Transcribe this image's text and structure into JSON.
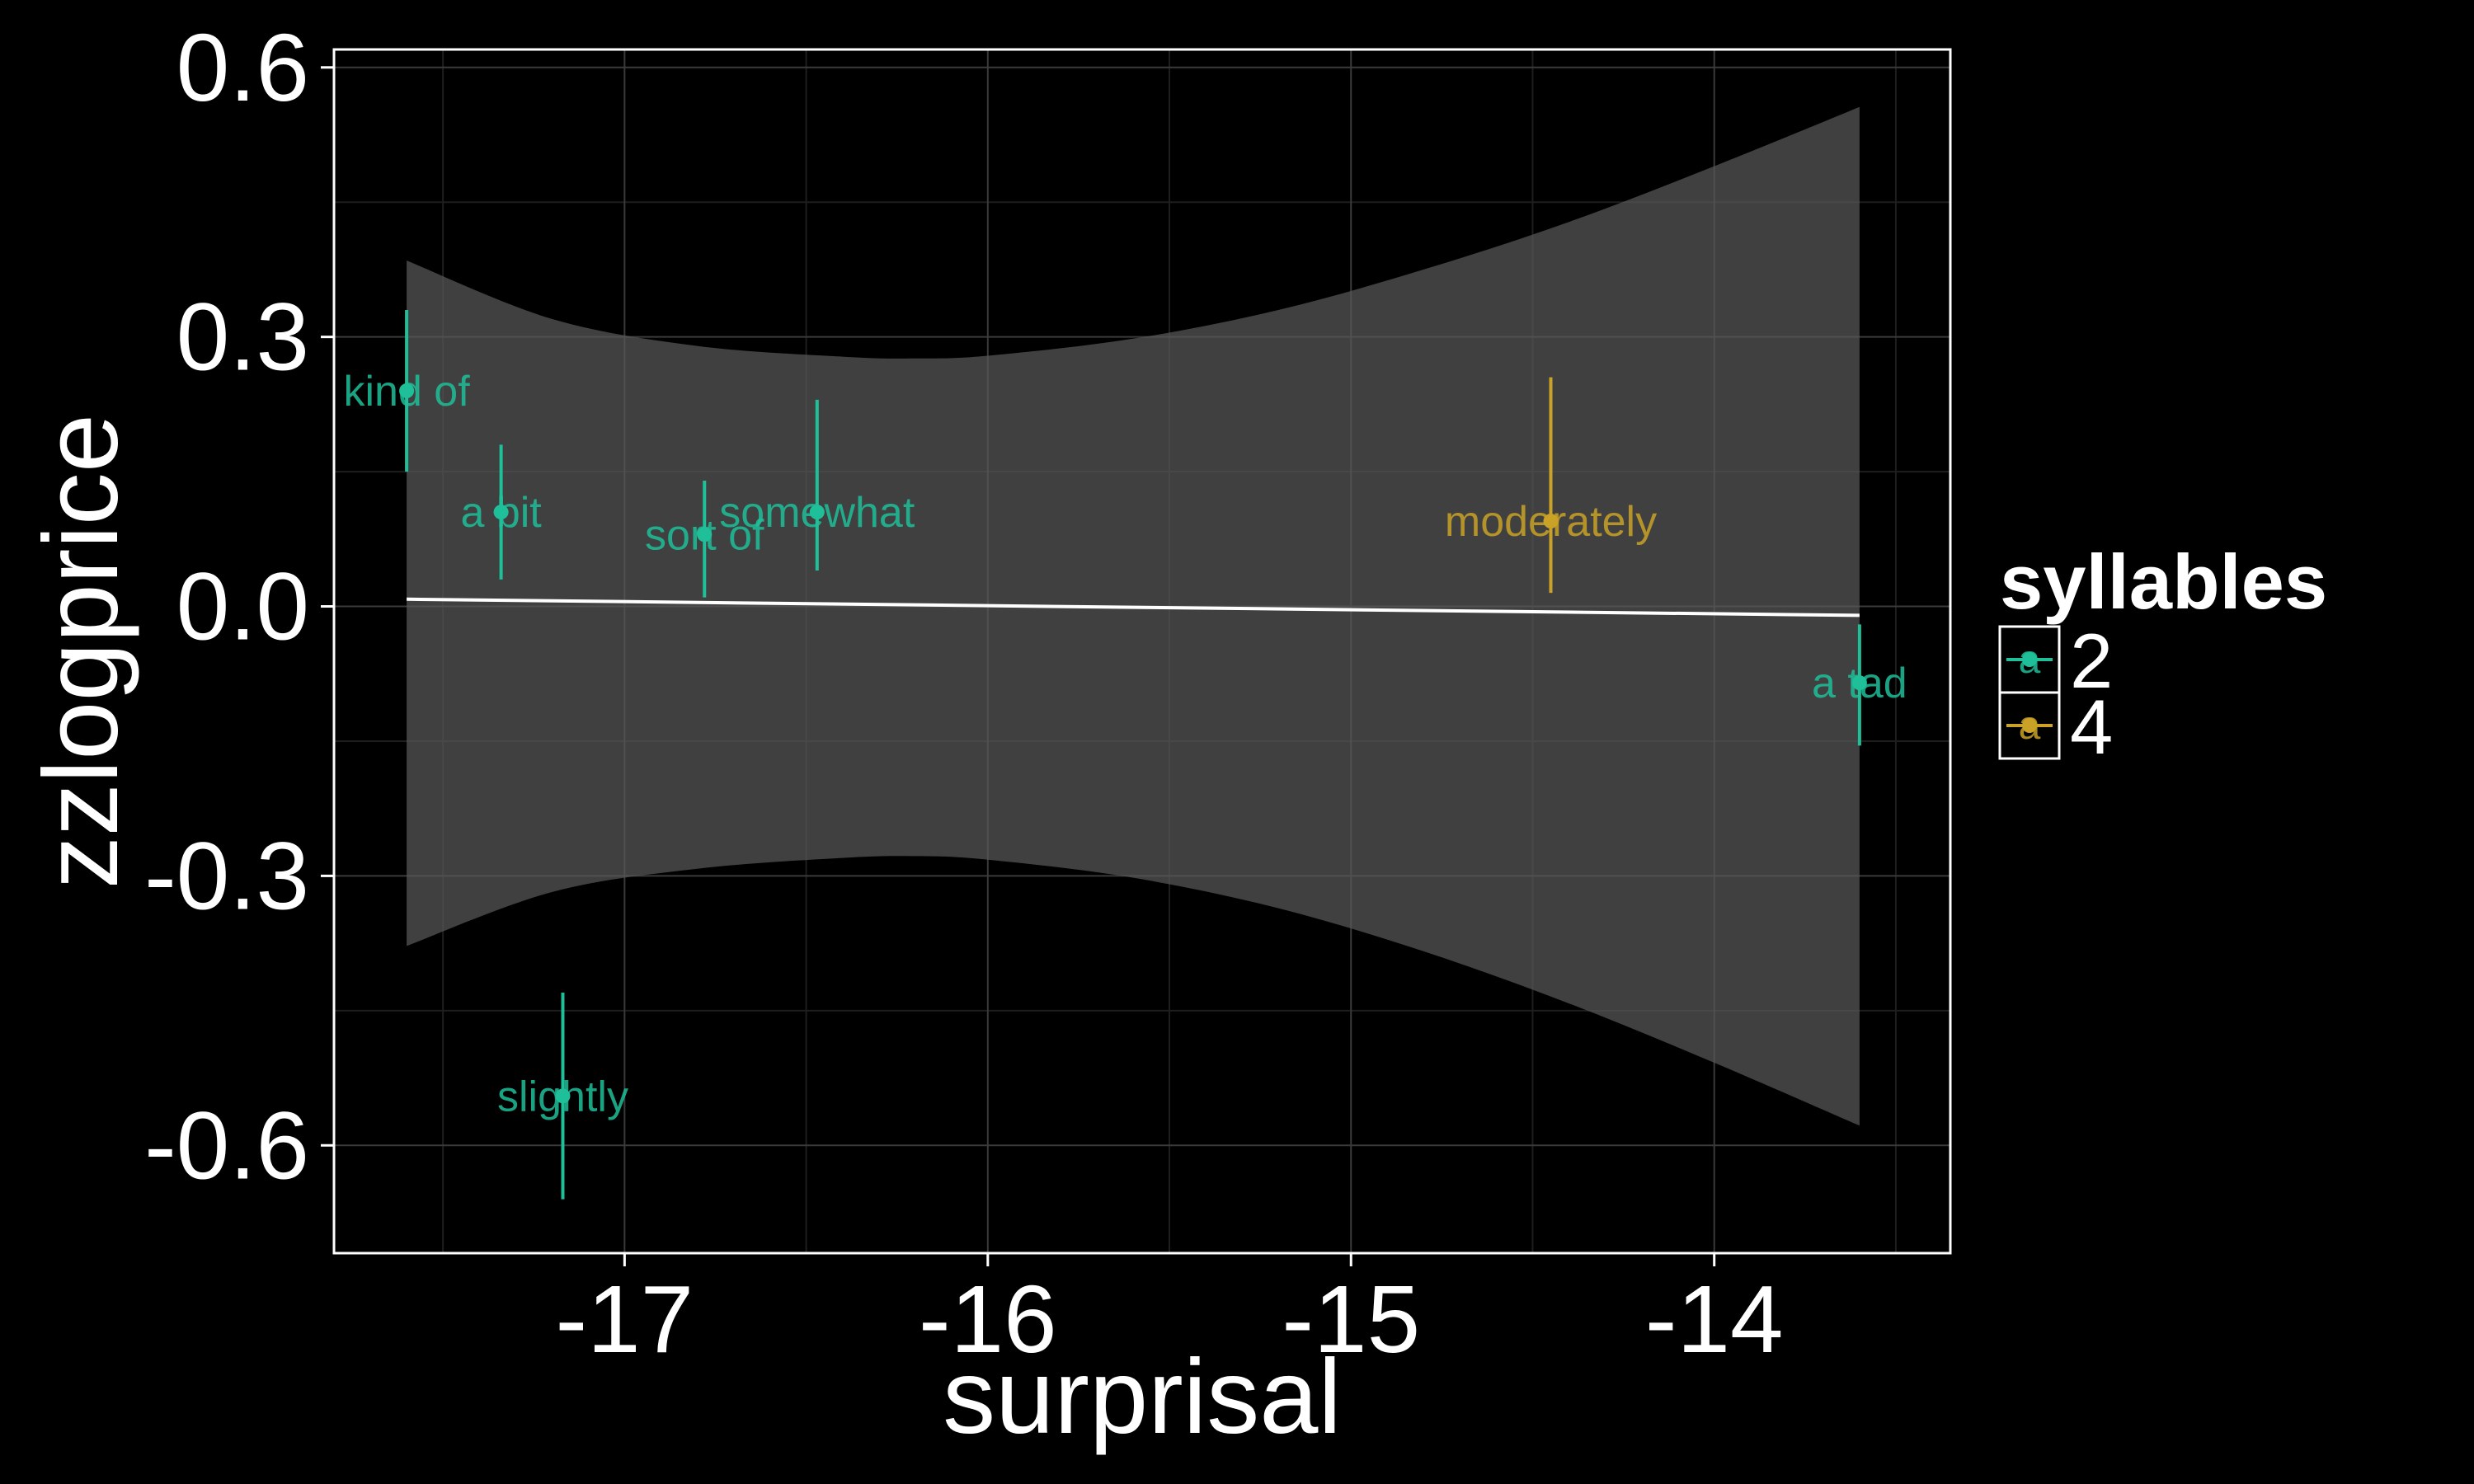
{
  "chart_data": {
    "type": "scatter",
    "title": "",
    "xlabel": "surprisal",
    "ylabel": "zzlogprice",
    "xlim": [
      -17.8,
      -13.35
    ],
    "ylim": [
      -0.72,
      0.62
    ],
    "xticks": [
      -17,
      -16,
      -15,
      -14
    ],
    "xtick_labels": [
      "-17",
      "-16",
      "-15",
      "-14"
    ],
    "yticks": [
      -0.6,
      -0.3,
      0.0,
      0.3,
      0.6
    ],
    "ytick_labels": [
      "-0.6",
      "-0.3",
      "0.0",
      "0.3",
      "0.6"
    ],
    "grid": true,
    "legend": {
      "title": "syllables",
      "placement": "right",
      "key_glyph": "a",
      "entries": [
        {
          "label": "2",
          "color": "#1fbf9a"
        },
        {
          "label": "4",
          "color": "#c9a227"
        }
      ]
    },
    "points": [
      {
        "label": "kind of",
        "x": -17.6,
        "y": 0.24,
        "ymin": 0.15,
        "ymax": 0.33,
        "syllables": "2"
      },
      {
        "label": "a bit",
        "x": -17.34,
        "y": 0.105,
        "ymin": 0.03,
        "ymax": 0.18,
        "syllables": "2"
      },
      {
        "label": "sort of",
        "x": -16.78,
        "y": 0.08,
        "ymin": 0.01,
        "ymax": 0.14,
        "syllables": "2"
      },
      {
        "label": "somewhat",
        "x": -16.47,
        "y": 0.105,
        "ymin": 0.04,
        "ymax": 0.23,
        "syllables": "2"
      },
      {
        "label": "slightly",
        "x": -17.17,
        "y": -0.545,
        "ymin": -0.66,
        "ymax": -0.43,
        "syllables": "2"
      },
      {
        "label": "moderately",
        "x": -14.45,
        "y": 0.095,
        "ymin": 0.015,
        "ymax": 0.255,
        "syllables": "4"
      },
      {
        "label": "a tad",
        "x": -13.6,
        "y": -0.085,
        "ymin": -0.155,
        "ymax": -0.02,
        "syllables": "2"
      }
    ],
    "fit_line": {
      "color": "#ffffff",
      "x": [
        -17.6,
        -13.6
      ],
      "y": [
        0.008,
        -0.01
      ]
    },
    "confidence_band": {
      "color": "#595959",
      "x": [
        -17.6,
        -17.2,
        -16.8,
        -16.4,
        -16.2,
        -16.0,
        -15.6,
        -15.2,
        -14.8,
        -14.4,
        -14.0,
        -13.6
      ],
      "upper": [
        0.385,
        0.32,
        0.29,
        0.278,
        0.276,
        0.279,
        0.298,
        0.33,
        0.375,
        0.428,
        0.49,
        0.556
      ],
      "lower": [
        -0.378,
        -0.318,
        -0.292,
        -0.28,
        -0.278,
        -0.282,
        -0.302,
        -0.336,
        -0.384,
        -0.442,
        -0.508,
        -0.578
      ]
    }
  }
}
